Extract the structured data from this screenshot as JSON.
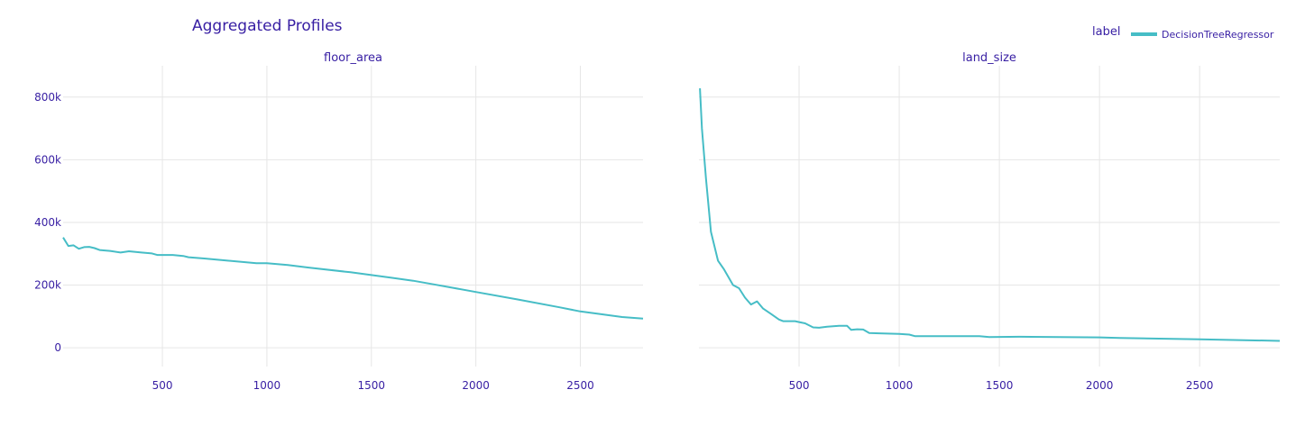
{
  "title": "Aggregated Profiles",
  "legend": {
    "title": "label",
    "placement": "top-right",
    "items": [
      {
        "name": "DecisionTreeRegressor",
        "color": "#46bdc6"
      }
    ]
  },
  "colors": {
    "text": "#371ea3",
    "grid": "#e6e6e6",
    "line": "#46bdc6",
    "background": "#ffffff"
  },
  "chart_data": [
    {
      "type": "line",
      "subtitle": "floor_area",
      "xlabel": "",
      "ylabel": "",
      "xlim": [
        25,
        2800
      ],
      "ylim": [
        -60000,
        900000
      ],
      "grid": true,
      "x_ticks": [
        {
          "value": 500,
          "label": "500"
        },
        {
          "value": 1000,
          "label": "1000"
        },
        {
          "value": 1500,
          "label": "1500"
        },
        {
          "value": 2000,
          "label": "2000"
        },
        {
          "value": 2500,
          "label": "2500"
        }
      ],
      "y_ticks": [
        {
          "value": 0,
          "label": "0"
        },
        {
          "value": 200000,
          "label": "200k"
        },
        {
          "value": 400000,
          "label": "400k"
        },
        {
          "value": 600000,
          "label": "600k"
        },
        {
          "value": 800000,
          "label": "800k"
        }
      ],
      "series": [
        {
          "name": "DecisionTreeRegressor",
          "points": [
            [
              25,
              352000
            ],
            [
              50,
              325000
            ],
            [
              75,
              327000
            ],
            [
              100,
              316000
            ],
            [
              125,
              321000
            ],
            [
              150,
              322000
            ],
            [
              175,
              318000
            ],
            [
              200,
              312000
            ],
            [
              250,
              309000
            ],
            [
              300,
              304000
            ],
            [
              340,
              308000
            ],
            [
              400,
              304000
            ],
            [
              450,
              301000
            ],
            [
              475,
              296000
            ],
            [
              550,
              296000
            ],
            [
              600,
              293000
            ],
            [
              625,
              289000
            ],
            [
              700,
              285000
            ],
            [
              800,
              279000
            ],
            [
              950,
              270000
            ],
            [
              1000,
              270000
            ],
            [
              1100,
              264000
            ],
            [
              1200,
              256000
            ],
            [
              1400,
              241000
            ],
            [
              1600,
              223000
            ],
            [
              1700,
              214000
            ],
            [
              1800,
              202000
            ],
            [
              2000,
              178000
            ],
            [
              2200,
              154000
            ],
            [
              2400,
              129000
            ],
            [
              2500,
              116000
            ],
            [
              2600,
              107000
            ],
            [
              2700,
              98000
            ],
            [
              2800,
              93000
            ]
          ]
        }
      ]
    },
    {
      "type": "line",
      "subtitle": "land_size",
      "xlabel": "",
      "ylabel": "",
      "xlim": [
        0,
        2900
      ],
      "ylim": [
        -60000,
        900000
      ],
      "grid": true,
      "x_ticks": [
        {
          "value": 500,
          "label": "500"
        },
        {
          "value": 1000,
          "label": "1000"
        },
        {
          "value": 1500,
          "label": "1500"
        },
        {
          "value": 2000,
          "label": "2000"
        },
        {
          "value": 2500,
          "label": "2500"
        }
      ],
      "y_ticks": [
        {
          "value": 0,
          "label": ""
        },
        {
          "value": 200000,
          "label": ""
        },
        {
          "value": 400000,
          "label": ""
        },
        {
          "value": 600000,
          "label": ""
        },
        {
          "value": 800000,
          "label": ""
        }
      ],
      "series": [
        {
          "name": "DecisionTreeRegressor",
          "points": [
            [
              5,
              828000
            ],
            [
              15,
              700000
            ],
            [
              35,
              540000
            ],
            [
              60,
              370000
            ],
            [
              95,
              278000
            ],
            [
              125,
              250000
            ],
            [
              170,
              200000
            ],
            [
              200,
              190000
            ],
            [
              230,
              160000
            ],
            [
              260,
              138000
            ],
            [
              290,
              148000
            ],
            [
              320,
              125000
            ],
            [
              360,
              108000
            ],
            [
              400,
              90000
            ],
            [
              420,
              85000
            ],
            [
              480,
              85000
            ],
            [
              500,
              82000
            ],
            [
              530,
              78000
            ],
            [
              570,
              65000
            ],
            [
              600,
              64000
            ],
            [
              640,
              67000
            ],
            [
              700,
              70000
            ],
            [
              740,
              70000
            ],
            [
              760,
              57000
            ],
            [
              790,
              59000
            ],
            [
              820,
              58000
            ],
            [
              850,
              47000
            ],
            [
              900,
              46000
            ],
            [
              1000,
              44000
            ],
            [
              1050,
              42000
            ],
            [
              1080,
              37000
            ],
            [
              1400,
              37000
            ],
            [
              1450,
              34000
            ],
            [
              1600,
              35000
            ],
            [
              2000,
              33000
            ],
            [
              2100,
              31000
            ],
            [
              2500,
              27000
            ],
            [
              2900,
              22000
            ]
          ]
        }
      ]
    }
  ]
}
